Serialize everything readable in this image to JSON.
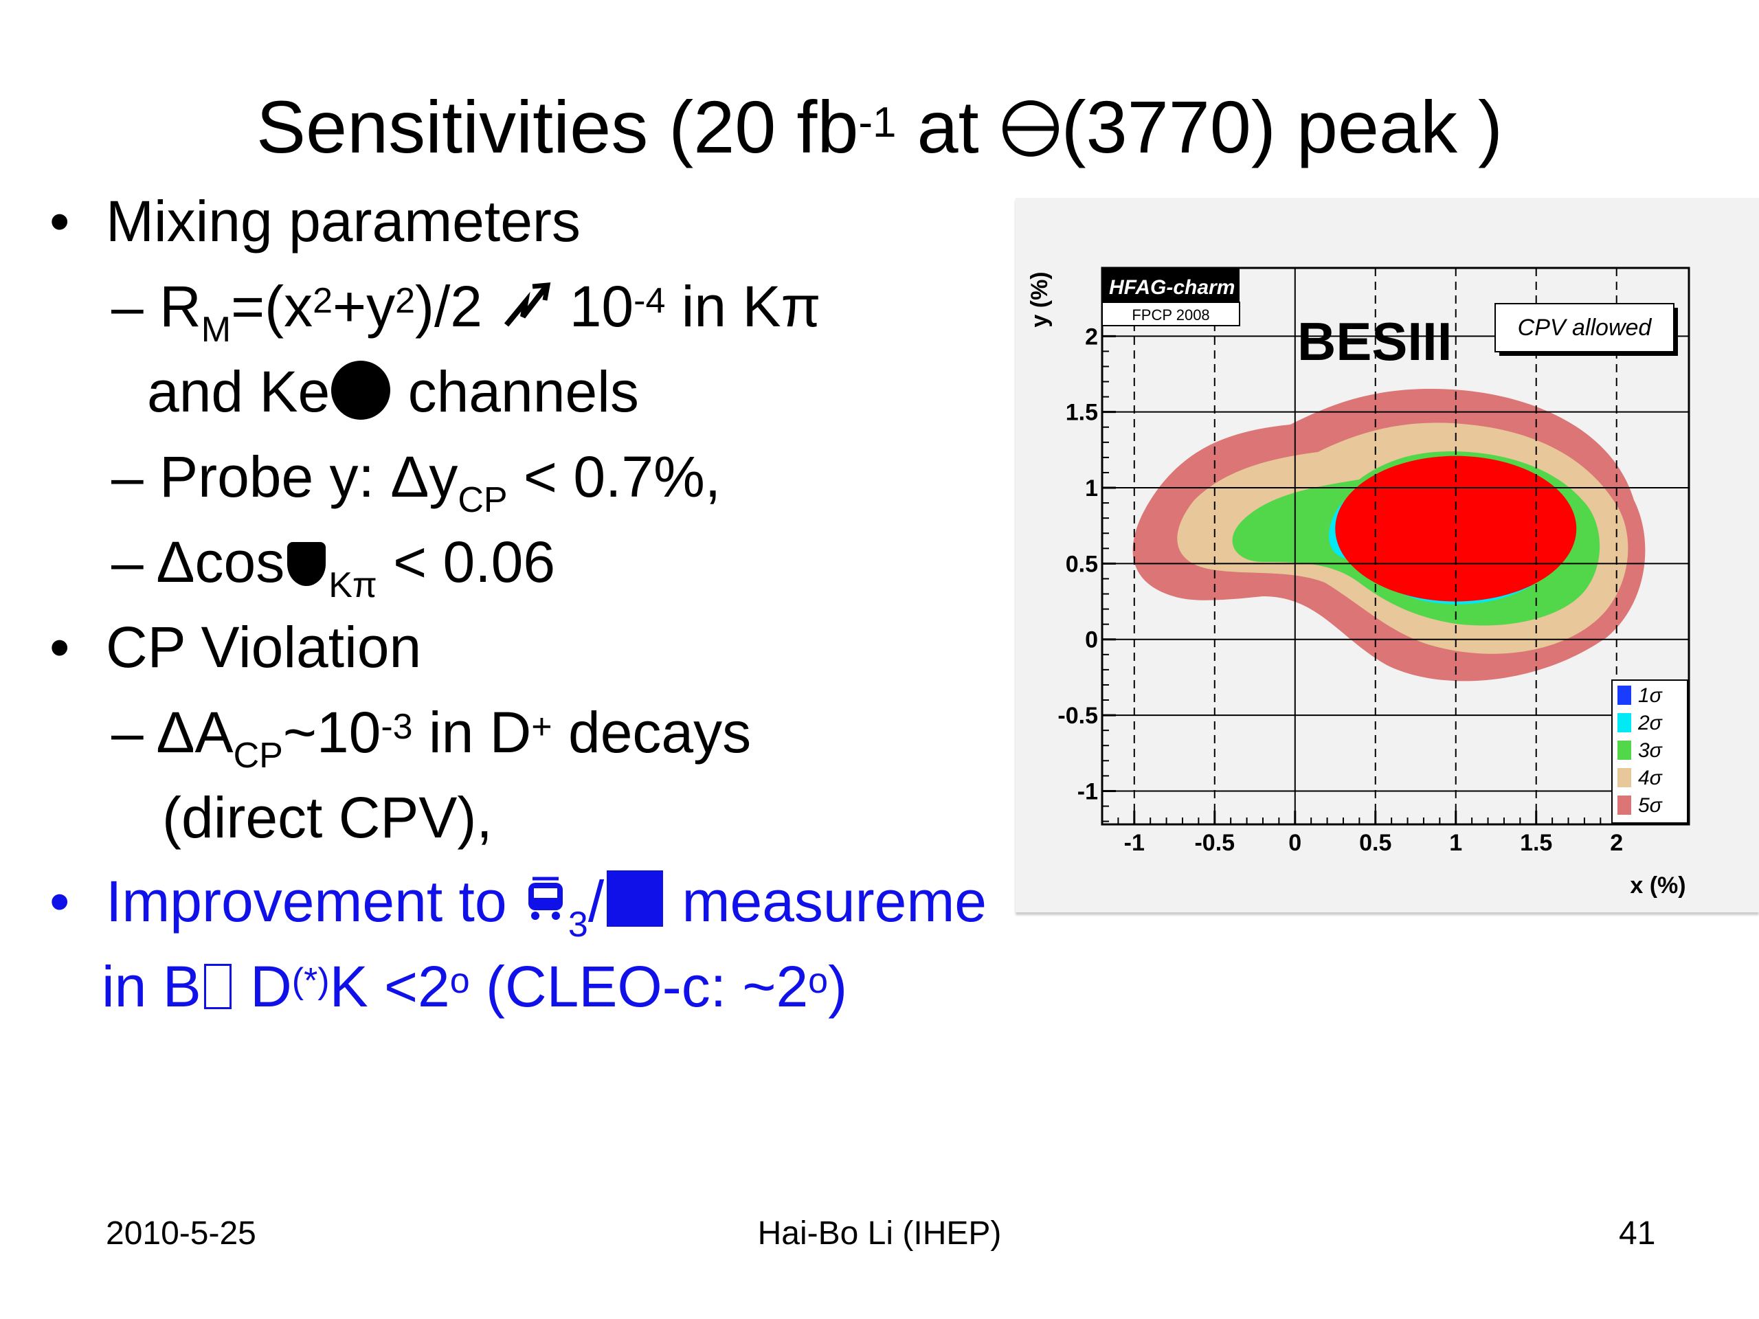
{
  "title": {
    "pre": "Sensitivities (20 fb",
    "sup": "-1",
    "mid": " at ",
    "post": "(3770) peak )"
  },
  "body": {
    "bullet_char": "•",
    "dash": "–",
    "b1": "Mixing parameters",
    "l2": {
      "a": "R",
      "sub": "M",
      "b": "=(x",
      "sup1": "2",
      "c": "+y",
      "sup2": "2",
      "d": ")/2 ",
      "e": " 10",
      "sup3": "-4",
      "f": " in Kπ"
    },
    "l3": {
      "a": "and Ke",
      "b": " channels"
    },
    "l4": {
      "a": "Probe y:  Δy",
      "sub": "CP",
      "b": " < 0.7%,"
    },
    "l5": {
      "a": "Δcos",
      "sub": "Kπ",
      "b": " < 0.06"
    },
    "b2": "CP Violation",
    "l7": {
      "a": "ΔA",
      "sub": "CP",
      "b": "~10",
      "sup": "-3",
      "c": " in D",
      "sup2": "+",
      "d": " decays"
    },
    "l8": "(direct CPV),",
    "b3": {
      "a": "Improvement to ",
      "sub": "3",
      "b": "/",
      "c": " measureme"
    },
    "l10": {
      "a": "in B",
      "b": " D",
      "sup": "(*)",
      "c": "K <2",
      "sup2": "o",
      "d": " (CLEO-c: ~2",
      "sup3": "o",
      "e": ")"
    }
  },
  "footer": {
    "date": "2010-5-25",
    "author": "Hai-Bo Li (IHEP)",
    "page": "41"
  },
  "colors": {
    "accent_blue": "#1010e8",
    "sigma1": "#1a3cff",
    "sigma2": "#00eaf5",
    "sigma3": "#52d64a",
    "sigma4": "#e8c79a",
    "sigma5": "#dc7575",
    "red_fill": "#ff0000"
  },
  "chart_data": {
    "type": "contour",
    "xlabel": "x (%)",
    "ylabel": "y (%)",
    "xlim": [
      -1.2,
      2.45
    ],
    "ylim": [
      -1.22,
      2.45
    ],
    "xticks": [
      "-1",
      "-0.5",
      "0",
      "0.5",
      "1",
      "1.5",
      "2"
    ],
    "yticks": [
      "-1",
      "-0.5",
      "0",
      "0.5",
      "1",
      "1.5",
      "2"
    ],
    "xtick_values": [
      -1,
      -0.5,
      0,
      0.5,
      1,
      1.5,
      2
    ],
    "ytick_values": [
      -1,
      -0.5,
      0,
      0.5,
      1,
      1.5,
      2
    ],
    "grid": true,
    "badge": {
      "line1": "HFAG-charm",
      "line2": "FPCP 2008"
    },
    "experiment_label": "BESIII",
    "box_label": "CPV allowed",
    "legend": [
      "1σ",
      "2σ",
      "3σ",
      "4σ",
      "5σ"
    ],
    "legend_placement": "bottom-right",
    "red_ellipse": {
      "center": [
        1.0,
        0.73
      ],
      "rx": 0.75,
      "ry": 0.48
    }
  }
}
